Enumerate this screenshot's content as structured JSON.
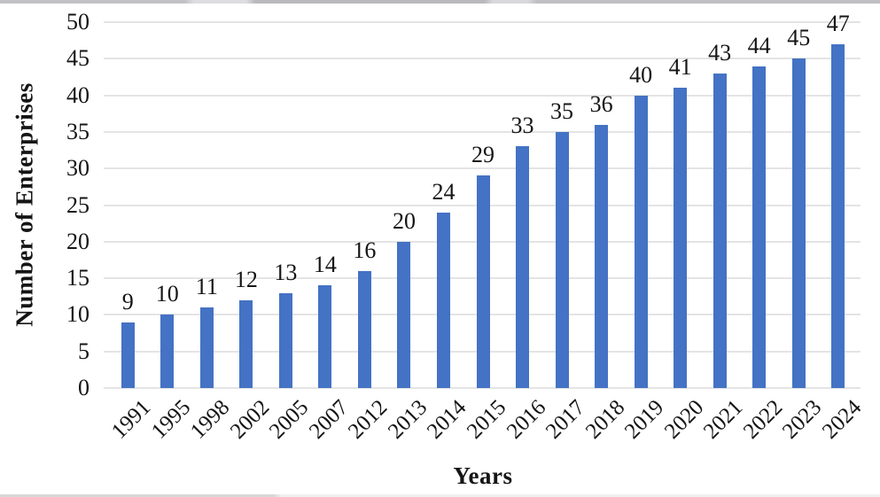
{
  "chart_data": {
    "type": "bar",
    "title": "",
    "xlabel": "Years",
    "ylabel": "Number of Enterprises",
    "categories": [
      "1991",
      "1995",
      "1998",
      "2002",
      "2005",
      "2007",
      "2012",
      "2013",
      "2014",
      "2015",
      "2016",
      "2017",
      "2018",
      "2019",
      "2020",
      "2021",
      "2022",
      "2023",
      "2024"
    ],
    "values": [
      9,
      10,
      11,
      12,
      13,
      14,
      16,
      20,
      24,
      29,
      33,
      35,
      36,
      40,
      41,
      43,
      44,
      45,
      47
    ],
    "data_labels_shown": true,
    "yticks": [
      0,
      5,
      10,
      15,
      20,
      25,
      30,
      35,
      40,
      45,
      50
    ],
    "ylim": [
      0,
      50
    ],
    "grid": true,
    "legend": "none",
    "bar_color": "#4472C4",
    "gridline_color": "#e4e4e4",
    "text_color": "#151515"
  }
}
